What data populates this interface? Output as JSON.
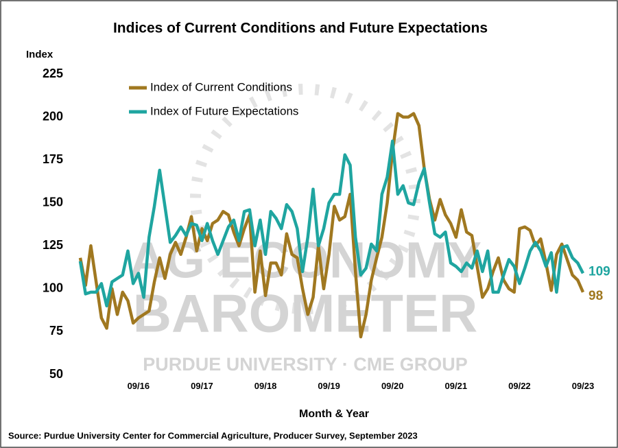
{
  "chart_data": {
    "type": "line",
    "title": "Indices of Current Conditions and Future Expectations",
    "y_label": "Index",
    "x_label": "Month & Year",
    "source": "Source: Purdue University Center for Commercial Agriculture, Producer Survey, September 2023",
    "watermark": [
      "AG ECONOMY",
      "BAROMETER",
      "PURDUE UNIVERSITY  ·  CME GROUP"
    ],
    "categories": [
      null,
      null,
      null,
      null,
      null,
      null,
      null,
      null,
      null,
      null,
      null,
      "09/16",
      null,
      null,
      null,
      null,
      null,
      null,
      null,
      null,
      null,
      null,
      null,
      "09/17",
      null,
      null,
      null,
      null,
      null,
      null,
      null,
      null,
      null,
      null,
      null,
      "09/18",
      null,
      null,
      null,
      null,
      null,
      null,
      null,
      null,
      null,
      null,
      null,
      "09/19",
      null,
      null,
      null,
      null,
      null,
      null,
      null,
      null,
      null,
      null,
      null,
      "09/20",
      null,
      null,
      null,
      null,
      null,
      null,
      null,
      null,
      null,
      null,
      null,
      "09/21",
      null,
      null,
      null,
      null,
      null,
      null,
      null,
      null,
      null,
      null,
      null,
      "09/22",
      null,
      null,
      null,
      null,
      null,
      null,
      null,
      null,
      null,
      null,
      null,
      "09/23"
    ],
    "series": [
      {
        "name": "Index of Current Conditions",
        "color": "#a07820",
        "values": [
          118,
          102,
          125,
          104,
          83,
          77,
          100,
          85,
          98,
          93,
          80,
          83,
          85,
          87,
          104,
          118,
          106,
          120,
          127,
          120,
          130,
          142,
          122,
          135,
          128,
          138,
          140,
          145,
          143,
          133,
          125,
          135,
          143,
          98,
          122,
          96,
          115,
          115,
          108,
          132,
          120,
          118,
          100,
          85,
          95,
          125,
          100,
          120,
          148,
          140,
          142,
          155,
          110,
          72,
          85,
          105,
          118,
          130,
          150,
          180,
          202,
          200,
          200,
          202,
          195,
          170,
          152,
          140,
          152,
          143,
          138,
          130,
          146,
          133,
          131,
          113,
          95,
          100,
          110,
          118,
          105,
          100,
          98,
          135,
          136,
          134,
          125,
          129,
          115,
          99,
          120,
          126,
          117,
          108,
          105,
          98
        ]
      },
      {
        "name": "Index of Future Expectations",
        "color": "#1fa5a0",
        "values": [
          116,
          97,
          98,
          98,
          103,
          90,
          104,
          106,
          108,
          122,
          103,
          109,
          95,
          130,
          148,
          169,
          148,
          127,
          131,
          136,
          131,
          138,
          137,
          128,
          138,
          128,
          120,
          128,
          136,
          140,
          128,
          145,
          146,
          125,
          140,
          120,
          145,
          141,
          135,
          149,
          145,
          135,
          110,
          130,
          158,
          125,
          135,
          150,
          155,
          155,
          178,
          172,
          130,
          108,
          112,
          126,
          122,
          155,
          165,
          186,
          155,
          160,
          150,
          149,
          162,
          170,
          150,
          132,
          130,
          133,
          115,
          113,
          110,
          115,
          112,
          122,
          110,
          122,
          98,
          98,
          108,
          117,
          113,
          103,
          112,
          122,
          127,
          122,
          113,
          121,
          98,
          124,
          125,
          118,
          115,
          109
        ]
      }
    ],
    "ylim": [
      50,
      225
    ],
    "yticks": [
      50,
      75,
      100,
      125,
      150,
      175,
      200,
      225
    ],
    "grid": false
  }
}
